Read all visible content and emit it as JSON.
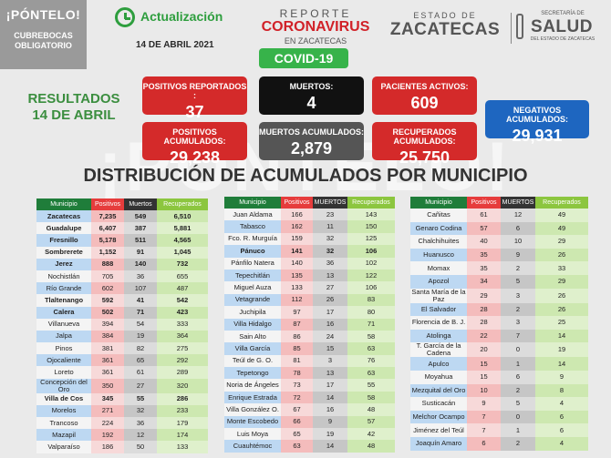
{
  "badge": {
    "line1": "¡PÓNTELO!",
    "line2": "CUBREBOCAS",
    "line3": "OBLIGATORIO"
  },
  "update": {
    "title": "Actualización",
    "date": "14 DE ABRIL 2021",
    "icon": "clock-icon"
  },
  "report": {
    "line1": "REPORTE",
    "line2": "CORONAVIRUS",
    "line3": "EN ZACATECAS",
    "tag": "COVID-19"
  },
  "gov": {
    "small": "ESTADO DE",
    "big": "ZACATECAS",
    "salud_small": "SECRETARÍA DE",
    "salud_big": "SALUD",
    "salud_sub": "DEL ESTADO DE ZACATECAS"
  },
  "results": {
    "line1": "RESULTADOS",
    "line2": "14 DE ABRIL"
  },
  "stats": {
    "positivos_reportados": {
      "label": "POSITIVOS REPORTADOS :",
      "value": "37"
    },
    "muertos": {
      "label": "MUERTOS:",
      "value": "4"
    },
    "pacientes_activos": {
      "label": "PACIENTES ACTIVOS:",
      "value": "609"
    },
    "negativos_acumulados": {
      "label": "NEGATIVOS ACUMULADOS:",
      "value": "29,931"
    },
    "positivos_acumulados": {
      "label": "POSITIVOS ACUMULADOS:",
      "value": "29,238"
    },
    "muertos_acumulados": {
      "label": "MUERTOS ACUMULADOS:",
      "value": "2,879"
    },
    "recuperados_acumulados": {
      "label": "RECUPERADOS ACUMULADOS:",
      "value": "25,750"
    }
  },
  "watermark": "¡PÓNTELO!",
  "heading": "DISTRIBUCIÓN DE ACUMULADOS POR MUNICIPIO",
  "colors": {
    "green": "#1f7d3a",
    "red": "#e63c3c",
    "black": "#333333",
    "lightgreen": "#8cc63f",
    "blue": "#1e66c0"
  },
  "tables": [
    {
      "headers": [
        "Municipio",
        "Positivos",
        "Muertos",
        "Recuperados"
      ],
      "rows": [
        [
          "Zacatecas",
          "7,235",
          "549",
          "6,510"
        ],
        [
          "Guadalupe",
          "6,407",
          "387",
          "5,881"
        ],
        [
          "Fresnillo",
          "5,178",
          "511",
          "4,565"
        ],
        [
          "Sombrerete",
          "1,152",
          "91",
          "1,045"
        ],
        [
          "Jerez",
          "888",
          "140",
          "732"
        ],
        [
          "Nochistlán",
          "705",
          "36",
          "655"
        ],
        [
          "Río Grande",
          "602",
          "107",
          "487"
        ],
        [
          "Tlaltenango",
          "592",
          "41",
          "542"
        ],
        [
          "Calera",
          "502",
          "71",
          "423"
        ],
        [
          "Villanueva",
          "394",
          "54",
          "333"
        ],
        [
          "Jalpa",
          "384",
          "19",
          "364"
        ],
        [
          "Pinos",
          "381",
          "82",
          "275"
        ],
        [
          "Ojocaliente",
          "361",
          "65",
          "292"
        ],
        [
          "Loreto",
          "361",
          "61",
          "289"
        ],
        [
          "Concepción del Oro",
          "350",
          "27",
          "320"
        ],
        [
          "Villa de Cos",
          "345",
          "55",
          "286"
        ],
        [
          "Morelos",
          "271",
          "32",
          "233"
        ],
        [
          "Trancoso",
          "224",
          "36",
          "179"
        ],
        [
          "Mazapil",
          "192",
          "12",
          "174"
        ],
        [
          "Valparaíso",
          "186",
          "50",
          "133"
        ]
      ]
    },
    {
      "headers": [
        "Municipio",
        "Positivos",
        "MUERTOS",
        "Recuperados"
      ],
      "rows": [
        [
          "Juan Aldama",
          "166",
          "23",
          "143"
        ],
        [
          "Tabasco",
          "162",
          "11",
          "150"
        ],
        [
          "Fco. R. Murguía",
          "159",
          "32",
          "125"
        ],
        [
          "Pánuco",
          "141",
          "32",
          "106"
        ],
        [
          "Pánfilo Natera",
          "140",
          "36",
          "102"
        ],
        [
          "Tepechitlán",
          "135",
          "13",
          "122"
        ],
        [
          "Miguel Auza",
          "133",
          "27",
          "106"
        ],
        [
          "Vetagrande",
          "112",
          "26",
          "83"
        ],
        [
          "Juchipila",
          "97",
          "17",
          "80"
        ],
        [
          "Villa Hidalgo",
          "87",
          "16",
          "71"
        ],
        [
          "Sain Alto",
          "86",
          "24",
          "58"
        ],
        [
          "Villa García",
          "85",
          "15",
          "63"
        ],
        [
          "Teúl de G. O.",
          "81",
          "3",
          "76"
        ],
        [
          "Tepetongo",
          "78",
          "13",
          "63"
        ],
        [
          "Noria de Ángeles",
          "73",
          "17",
          "55"
        ],
        [
          "Enrique Estrada",
          "72",
          "14",
          "58"
        ],
        [
          "Villa González O.",
          "67",
          "16",
          "48"
        ],
        [
          "Monte Escobedo",
          "66",
          "9",
          "57"
        ],
        [
          "Luis Moya",
          "65",
          "19",
          "42"
        ],
        [
          "Cuauhtémoc",
          "63",
          "14",
          "48"
        ]
      ]
    },
    {
      "headers": [
        "Municipio",
        "Positivos",
        "MUERTOS",
        "Recuperados"
      ],
      "rows": [
        [
          "Cañitas",
          "61",
          "12",
          "49"
        ],
        [
          "Genaro Codina",
          "57",
          "6",
          "49"
        ],
        [
          "Chalchihuites",
          "40",
          "10",
          "29"
        ],
        [
          "Huanusco",
          "35",
          "9",
          "26"
        ],
        [
          "Momax",
          "35",
          "2",
          "33"
        ],
        [
          "Apozol",
          "34",
          "5",
          "29"
        ],
        [
          "Santa María de la Paz",
          "29",
          "3",
          "26"
        ],
        [
          "El Salvador",
          "28",
          "2",
          "26"
        ],
        [
          "Florencia de B. J.",
          "28",
          "3",
          "25"
        ],
        [
          "Atolinga",
          "22",
          "7",
          "14"
        ],
        [
          "T. García de la Cadena",
          "20",
          "0",
          "19"
        ],
        [
          "Apulco",
          "15",
          "1",
          "14"
        ],
        [
          "Moyahua",
          "15",
          "6",
          "9"
        ],
        [
          "Mezquital del Oro",
          "10",
          "2",
          "8"
        ],
        [
          "Susticacán",
          "9",
          "5",
          "4"
        ],
        [
          "Melchor Ocampo",
          "7",
          "0",
          "6"
        ],
        [
          "Jiménez del Teúl",
          "7",
          "1",
          "6"
        ],
        [
          "Joaquín Amaro",
          "6",
          "2",
          "4"
        ]
      ]
    }
  ]
}
